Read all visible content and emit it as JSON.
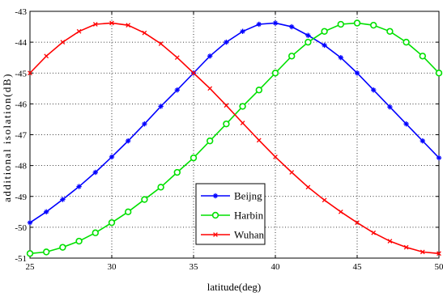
{
  "chart_data": {
    "type": "line",
    "title": "",
    "xlabel": "latitude(deg)",
    "ylabel": "additional isolation(dB)",
    "xlim": [
      25,
      50
    ],
    "ylim": [
      -51,
      -43
    ],
    "xticks": [
      "25",
      "30",
      "35",
      "40",
      "45",
      "50"
    ],
    "yticks": [
      "-43",
      "-44",
      "-45",
      "-46",
      "-47",
      "-48",
      "-49",
      "-50",
      "-51"
    ],
    "grid": true,
    "legend_position": "bottom-center",
    "x": [
      25,
      26,
      27,
      28,
      29,
      30,
      31,
      32,
      33,
      34,
      35,
      36,
      37,
      38,
      39,
      40,
      41,
      42,
      43,
      44,
      45,
      46,
      47,
      48,
      49,
      50
    ],
    "series": [
      {
        "name": "Beijng",
        "color": "#0000ff",
        "marker": "star-icon",
        "values": [
          -49.85,
          -49.5,
          -49.1,
          -48.68,
          -48.22,
          -47.72,
          -47.2,
          -46.65,
          -46.08,
          -45.55,
          -45.0,
          -44.45,
          -44.0,
          -43.65,
          -43.42,
          -43.38,
          -43.5,
          -43.78,
          -44.1,
          -44.5,
          -45.0,
          -45.55,
          -46.1,
          -46.65,
          -47.2,
          -47.75
        ]
      },
      {
        "name": "Harbin",
        "color": "#00e000",
        "marker": "circle-icon",
        "values": [
          -50.85,
          -50.8,
          -50.65,
          -50.45,
          -50.18,
          -49.85,
          -49.5,
          -49.1,
          -48.7,
          -48.22,
          -47.75,
          -47.2,
          -46.65,
          -46.08,
          -45.55,
          -45.0,
          -44.45,
          -44.0,
          -43.65,
          -43.42,
          -43.38,
          -43.45,
          -43.65,
          -44.0,
          -44.45,
          -45.0
        ]
      },
      {
        "name": "Wuhan",
        "color": "#ff0000",
        "marker": "x-icon",
        "values": [
          -45.0,
          -44.45,
          -44.0,
          -43.65,
          -43.42,
          -43.38,
          -43.45,
          -43.7,
          -44.05,
          -44.5,
          -45.0,
          -45.5,
          -46.05,
          -46.62,
          -47.18,
          -47.72,
          -48.22,
          -48.7,
          -49.12,
          -49.5,
          -49.85,
          -50.18,
          -50.45,
          -50.65,
          -50.8,
          -50.85
        ]
      }
    ]
  }
}
